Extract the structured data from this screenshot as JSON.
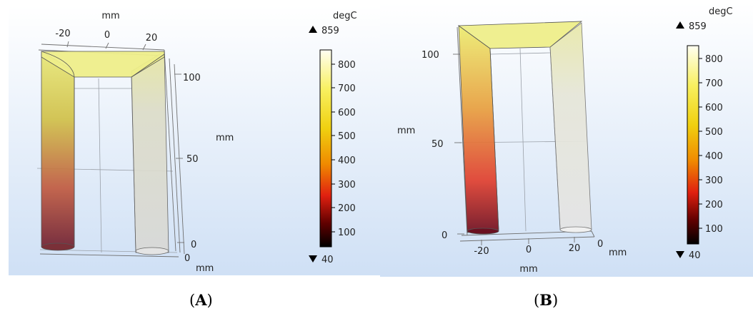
{
  "panels": [
    {
      "id": "A",
      "caption": "A",
      "axis_unit": "mm",
      "x_ticks": [
        "-20",
        "0",
        "20"
      ],
      "z_ticks": [
        "100",
        "50",
        "0"
      ],
      "y_tick": "0",
      "colorbar": {
        "unit": "degC",
        "max_label": "859",
        "min_label": "40",
        "ticks": [
          "800",
          "700",
          "600",
          "500",
          "400",
          "300",
          "200",
          "100"
        ]
      }
    },
    {
      "id": "B",
      "caption": "B",
      "axis_unit": "mm",
      "x_ticks": [
        "-20",
        "0",
        "20"
      ],
      "z_ticks": [
        "100",
        "50",
        "0"
      ],
      "y_tick": "0",
      "colorbar": {
        "unit": "degC",
        "max_label": "859",
        "min_label": "40",
        "ticks": [
          "800",
          "700",
          "600",
          "500",
          "400",
          "300",
          "200",
          "100"
        ]
      }
    }
  ],
  "colors": {
    "background_top": "#ffffff",
    "background_bottom": "#cfe0f5",
    "hot": "#fffff0",
    "warm": "#f0f020",
    "mid": "#f5a500",
    "cool": "#e01010",
    "cold": "#000000"
  }
}
